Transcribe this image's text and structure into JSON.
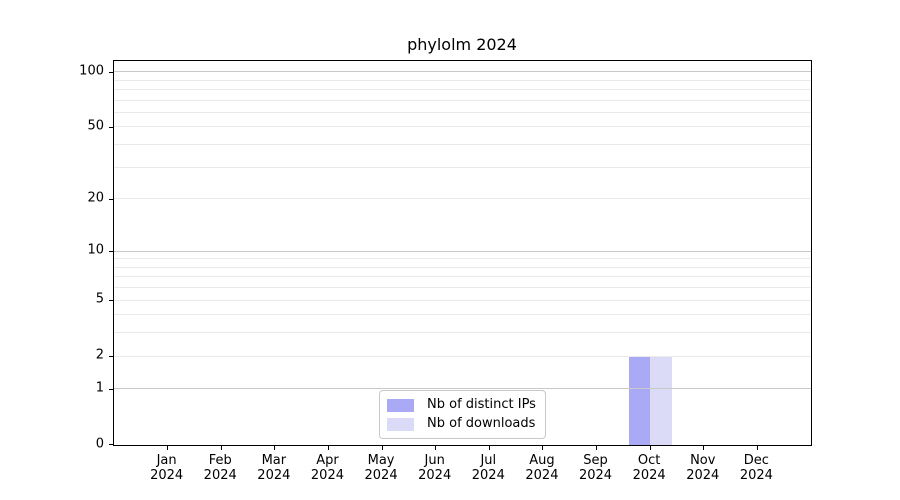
{
  "chart_data": {
    "type": "bar",
    "title": "phylolm 2024",
    "categories": [
      "Jan",
      "Feb",
      "Mar",
      "Apr",
      "May",
      "Jun",
      "Jul",
      "Aug",
      "Sep",
      "Oct",
      "Nov",
      "Dec"
    ],
    "category_sublabel": "2024",
    "series": [
      {
        "name": "Nb of distinct IPs",
        "color": "#a9a9f5",
        "values": [
          0,
          0,
          0,
          0,
          0,
          0,
          0,
          0,
          0,
          2,
          0,
          0
        ]
      },
      {
        "name": "Nb of downloads",
        "color": "#dbdbf8",
        "values": [
          0,
          0,
          0,
          0,
          0,
          0,
          0,
          0,
          0,
          2,
          0,
          0
        ]
      }
    ],
    "y_axis": {
      "scale": "log1p",
      "max": 114.3,
      "tick_labels": [
        0,
        1,
        2,
        5,
        10,
        20,
        50,
        100
      ],
      "major_gridlines": [
        1,
        10,
        100
      ],
      "minor_gridlines": [
        2,
        3,
        4,
        5,
        6,
        7,
        8,
        9,
        20,
        30,
        40,
        50,
        60,
        70,
        80,
        90
      ]
    },
    "legend": {
      "position": "lower center"
    },
    "colors": {
      "major_grid": "#c9c9c9",
      "minor_grid": "#eaeaea",
      "spine": "#000000"
    }
  }
}
